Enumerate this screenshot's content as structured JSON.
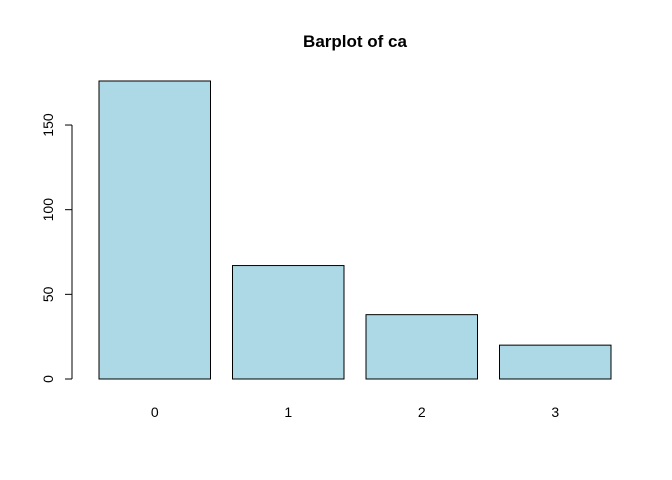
{
  "chart_data": {
    "type": "bar",
    "title": "Barplot of ca",
    "xlabel": "",
    "ylabel": "",
    "categories": [
      "0",
      "1",
      "2",
      "3"
    ],
    "values": [
      176,
      67,
      38,
      20
    ],
    "ylim": [
      0,
      180
    ],
    "yticks": [
      0,
      50,
      100,
      150
    ],
    "bar_color": "#add8e6",
    "grid": false,
    "legend": "none"
  }
}
